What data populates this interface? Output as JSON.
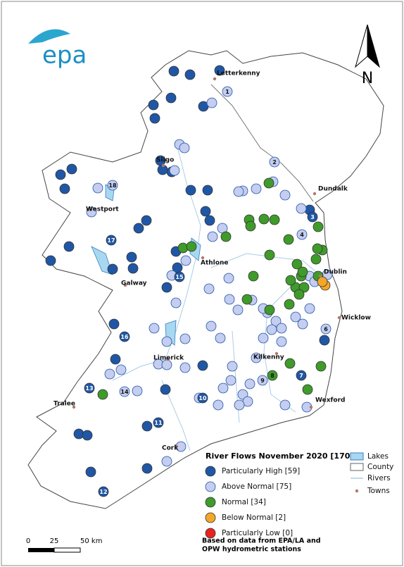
{
  "logo": "epa",
  "north": "N",
  "towns": [
    "Letterkenny",
    "Sligo",
    "Dundalk",
    "Westport",
    "Athlone",
    "Dublin",
    "Galway",
    "Wicklow",
    "Limerick",
    "Kilkenny",
    "Wexford",
    "Tralee",
    "Cork"
  ],
  "station_labels": [
    "1",
    "2",
    "3",
    "4",
    "6",
    "7",
    "8",
    "9",
    "10",
    "11",
    "12",
    "13",
    "14",
    "15",
    "16",
    "17",
    "18"
  ],
  "legend": {
    "title": "River Flows November 2020 [170]",
    "classes": [
      {
        "label": "Particularly High [59]",
        "color": "#1f57a6"
      },
      {
        "label": "Above Normal [75]",
        "color": "#c5cdf0"
      },
      {
        "label": "Normal [34]",
        "color": "#3f9b2a"
      },
      {
        "label": "Below Normal [2]",
        "color": "#f3a72a"
      },
      {
        "label": "Particularly Low [0]",
        "color": "#e8231d"
      }
    ],
    "layers": [
      "Lakes",
      "County",
      "Rivers",
      "Towns"
    ]
  },
  "note": [
    "Based on data from EPA/LA and",
    "OPW hydrometric stations"
  ],
  "scale": [
    "0",
    "25",
    "50 km"
  ]
}
